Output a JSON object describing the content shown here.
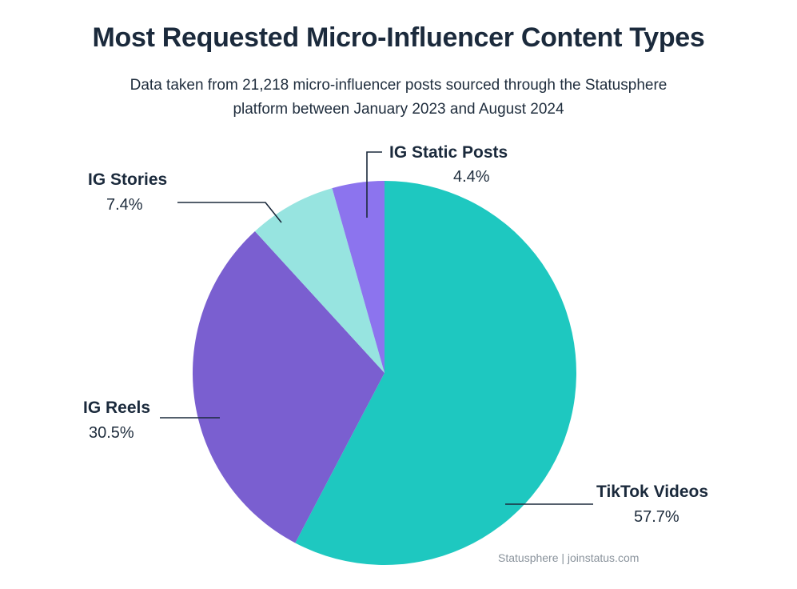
{
  "header": {
    "title": "Most Requested Micro-Influencer Content Types",
    "subtitle_line1": "Data taken from 21,218 micro-influencer posts sourced through the Statusphere",
    "subtitle_line2": "platform between January 2023 and August 2024"
  },
  "source": "Statusphere | joinstatus.com",
  "chart_data": {
    "type": "pie",
    "title": "Most Requested Micro-Influencer Content Types",
    "slices": [
      {
        "name": "TikTok Videos",
        "value": 57.7,
        "label": "57.7%",
        "color": "#1ec8c0"
      },
      {
        "name": "IG Reels",
        "value": 30.5,
        "label": "30.5%",
        "color": "#7a5fd0"
      },
      {
        "name": "IG Stories",
        "value": 7.4,
        "label": "7.4%",
        "color": "#97e4e0"
      },
      {
        "name": "IG Static Posts",
        "value": 4.4,
        "label": "4.4%",
        "color": "#8c74ee"
      }
    ],
    "start_angle_deg": 0,
    "direction": "clockwise"
  }
}
